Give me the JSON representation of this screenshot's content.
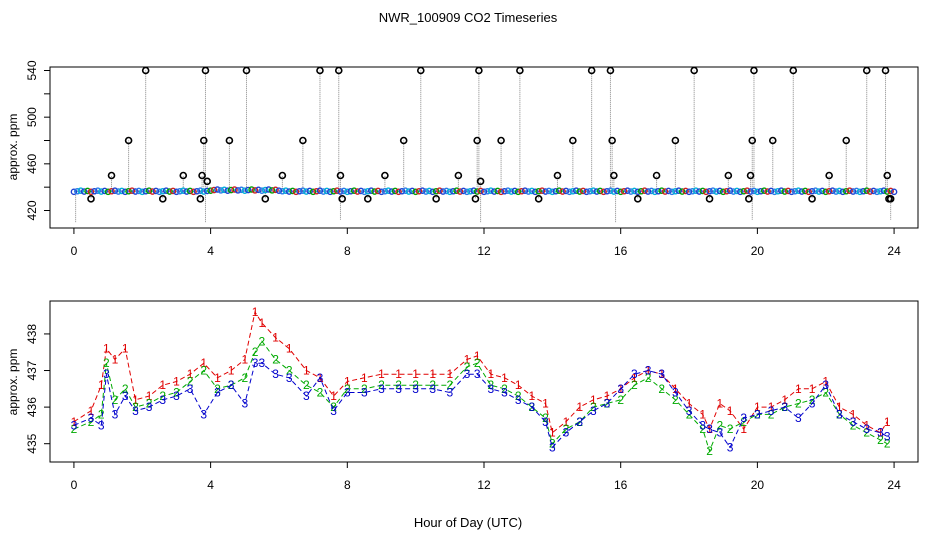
{
  "figure_title": "NWR_100909  CO2 Timeseries",
  "x_title": "Hour of Day (UTC)",
  "chart_data": [
    {
      "type": "scatter",
      "ylabel": "approx. ppm",
      "xlim": [
        -0.7,
        24.7
      ],
      "ylim": [
        405,
        543
      ],
      "xticks": [
        0,
        4,
        8,
        12,
        16,
        20,
        24
      ],
      "xtick_labels": [
        "0",
        "4",
        "8",
        "12",
        "16",
        "20",
        "24"
      ],
      "yticks": [
        420,
        440,
        460,
        480,
        500,
        520,
        540
      ],
      "ytick_labels": [
        "420",
        "",
        "460",
        "",
        "500",
        "",
        "540"
      ],
      "grid": false,
      "baseline": 436.5,
      "drops": [
        [
          0.05,
          410
        ],
        [
          3.85,
          410
        ],
        [
          7.8,
          412
        ],
        [
          11.9,
          410
        ],
        [
          15.85,
          410
        ],
        [
          19.85,
          412
        ],
        [
          23.9,
          412
        ]
      ],
      "series": [
        {
          "name": "",
          "color": "#000000",
          "marker": "open-circle",
          "x": [
            0.5,
            1.1,
            1.6,
            2.1,
            2.6,
            3.2,
            3.7,
            3.75,
            3.8,
            3.85,
            3.9,
            4.55,
            5.05,
            5.6,
            6.1,
            6.7,
            7.2,
            7.75,
            7.8,
            7.85,
            8.6,
            9.1,
            9.65,
            10.15,
            10.6,
            11.25,
            11.75,
            11.8,
            11.85,
            11.9,
            12.5,
            13.05,
            13.6,
            14.15,
            14.6,
            15.15,
            15.7,
            15.75,
            15.8,
            16.5,
            17.05,
            17.6,
            18.15,
            18.6,
            19.15,
            19.75,
            19.8,
            19.85,
            19.9,
            20.45,
            21.05,
            21.6,
            22.1,
            22.6,
            23.2,
            23.75,
            23.8,
            23.85,
            23.9
          ],
          "y": [
            430,
            450,
            480,
            540,
            430,
            450,
            430,
            450,
            480,
            540,
            445,
            480,
            540,
            430,
            450,
            480,
            540,
            540,
            450,
            430,
            430,
            450,
            480,
            540,
            430,
            450,
            430,
            480,
            540,
            445,
            480,
            540,
            430,
            450,
            480,
            540,
            540,
            480,
            450,
            430,
            450,
            480,
            540,
            430,
            450,
            430,
            450,
            480,
            540,
            480,
            540,
            430,
            450,
            480,
            540,
            540,
            450,
            430,
            430
          ]
        }
      ]
    },
    {
      "type": "line",
      "ylabel": "approx. ppm",
      "xlim": [
        -0.7,
        24.7
      ],
      "ylim": [
        434.5,
        438.9
      ],
      "xticks": [
        0,
        4,
        8,
        12,
        16,
        20,
        24
      ],
      "xtick_labels": [
        "0",
        "4",
        "8",
        "12",
        "16",
        "20",
        "24"
      ],
      "yticks": [
        435,
        436,
        437,
        438
      ],
      "ytick_labels": [
        "435",
        "436",
        "437",
        "438"
      ],
      "grid": false,
      "series": [
        {
          "name": "1",
          "color": "#e00000",
          "x": [
            0,
            0.5,
            0.8,
            0.95,
            1.2,
            1.5,
            1.8,
            2.2,
            2.6,
            3.0,
            3.4,
            3.8,
            4.2,
            4.6,
            5.0,
            5.3,
            5.5,
            5.9,
            6.3,
            6.8,
            7.2,
            7.6,
            8.0,
            8.5,
            9.0,
            9.5,
            10.0,
            10.5,
            11.0,
            11.5,
            11.8,
            12.2,
            12.6,
            13.0,
            13.4,
            13.8,
            14.0,
            14.4,
            14.8,
            15.2,
            15.6,
            16.0,
            16.4,
            16.8,
            17.2,
            17.6,
            18.0,
            18.4,
            18.6,
            18.9,
            19.2,
            19.6,
            20.0,
            20.4,
            20.8,
            21.2,
            21.6,
            22.0,
            22.4,
            22.8,
            23.2,
            23.6,
            23.8
          ],
          "y": [
            435.6,
            435.9,
            436.6,
            437.6,
            437.3,
            437.6,
            436.2,
            436.3,
            436.6,
            436.7,
            436.9,
            437.2,
            436.8,
            437.0,
            437.3,
            438.6,
            438.3,
            437.9,
            437.6,
            437.0,
            436.8,
            436.3,
            436.7,
            436.8,
            436.9,
            436.9,
            436.9,
            436.9,
            436.9,
            437.3,
            437.4,
            436.9,
            436.8,
            436.6,
            436.3,
            436.1,
            435.3,
            435.6,
            436.0,
            436.2,
            436.3,
            436.5,
            436.8,
            437.0,
            436.9,
            436.5,
            436.1,
            435.8,
            435.4,
            436.1,
            435.9,
            435.4,
            436.0,
            436.0,
            436.2,
            436.5,
            436.5,
            436.7,
            436.0,
            435.8,
            435.5,
            435.3,
            435.6
          ]
        },
        {
          "name": "2",
          "color": "#00aa00",
          "x": [
            0,
            0.5,
            0.8,
            0.95,
            1.2,
            1.5,
            1.8,
            2.2,
            2.6,
            3.0,
            3.4,
            3.8,
            4.2,
            4.6,
            5.0,
            5.3,
            5.5,
            5.9,
            6.3,
            6.8,
            7.2,
            7.6,
            8.0,
            8.5,
            9.0,
            9.5,
            10.0,
            10.5,
            11.0,
            11.5,
            11.8,
            12.2,
            12.6,
            13.0,
            13.4,
            13.8,
            14.0,
            14.4,
            14.8,
            15.2,
            15.6,
            16.0,
            16.4,
            16.8,
            17.2,
            17.6,
            18.0,
            18.4,
            18.6,
            18.9,
            19.2,
            19.6,
            20.0,
            20.4,
            20.8,
            21.2,
            21.6,
            22.0,
            22.4,
            22.8,
            23.2,
            23.6,
            23.8
          ],
          "y": [
            435.4,
            435.6,
            435.8,
            437.2,
            436.2,
            436.5,
            436.0,
            436.1,
            436.3,
            436.4,
            436.7,
            437.0,
            436.5,
            436.6,
            436.8,
            437.5,
            437.8,
            437.3,
            437.0,
            436.6,
            436.4,
            436.0,
            436.5,
            436.5,
            436.6,
            436.6,
            436.6,
            436.6,
            436.6,
            437.1,
            437.2,
            436.6,
            436.5,
            436.3,
            436.0,
            435.7,
            435.0,
            435.4,
            435.6,
            436.0,
            436.1,
            436.2,
            436.6,
            436.8,
            436.5,
            436.2,
            435.8,
            435.4,
            434.8,
            435.5,
            435.4,
            435.6,
            435.8,
            435.8,
            436.0,
            436.1,
            436.2,
            436.4,
            435.8,
            435.5,
            435.3,
            435.1,
            435.0
          ]
        },
        {
          "name": "3",
          "color": "#0000cc",
          "x": [
            0,
            0.5,
            0.8,
            0.95,
            1.2,
            1.5,
            1.8,
            2.2,
            2.6,
            3.0,
            3.4,
            3.8,
            4.2,
            4.6,
            5.0,
            5.3,
            5.5,
            5.9,
            6.3,
            6.8,
            7.2,
            7.6,
            8.0,
            8.5,
            9.0,
            9.5,
            10.0,
            10.5,
            11.0,
            11.5,
            11.8,
            12.2,
            12.6,
            13.0,
            13.4,
            13.8,
            14.0,
            14.4,
            14.8,
            15.2,
            15.6,
            16.0,
            16.4,
            16.8,
            17.2,
            17.6,
            18.0,
            18.4,
            18.6,
            18.9,
            19.2,
            19.6,
            20.0,
            20.4,
            20.8,
            21.2,
            21.6,
            22.0,
            22.4,
            22.8,
            23.2,
            23.6,
            23.8
          ],
          "y": [
            435.5,
            435.7,
            435.5,
            436.9,
            435.8,
            436.3,
            435.9,
            436.0,
            436.2,
            436.3,
            436.5,
            435.8,
            436.4,
            436.6,
            436.1,
            437.2,
            437.2,
            436.9,
            436.8,
            436.3,
            436.8,
            435.9,
            436.4,
            436.4,
            436.5,
            436.5,
            436.5,
            436.5,
            436.4,
            436.9,
            436.9,
            436.5,
            436.4,
            436.2,
            436.0,
            435.6,
            434.9,
            435.3,
            435.6,
            435.9,
            436.1,
            436.5,
            436.9,
            437.0,
            436.9,
            436.4,
            435.9,
            435.5,
            435.4,
            435.3,
            434.9,
            435.7,
            435.8,
            435.9,
            436.0,
            435.7,
            436.1,
            436.6,
            435.8,
            435.6,
            435.4,
            435.3,
            435.2
          ]
        }
      ]
    }
  ]
}
